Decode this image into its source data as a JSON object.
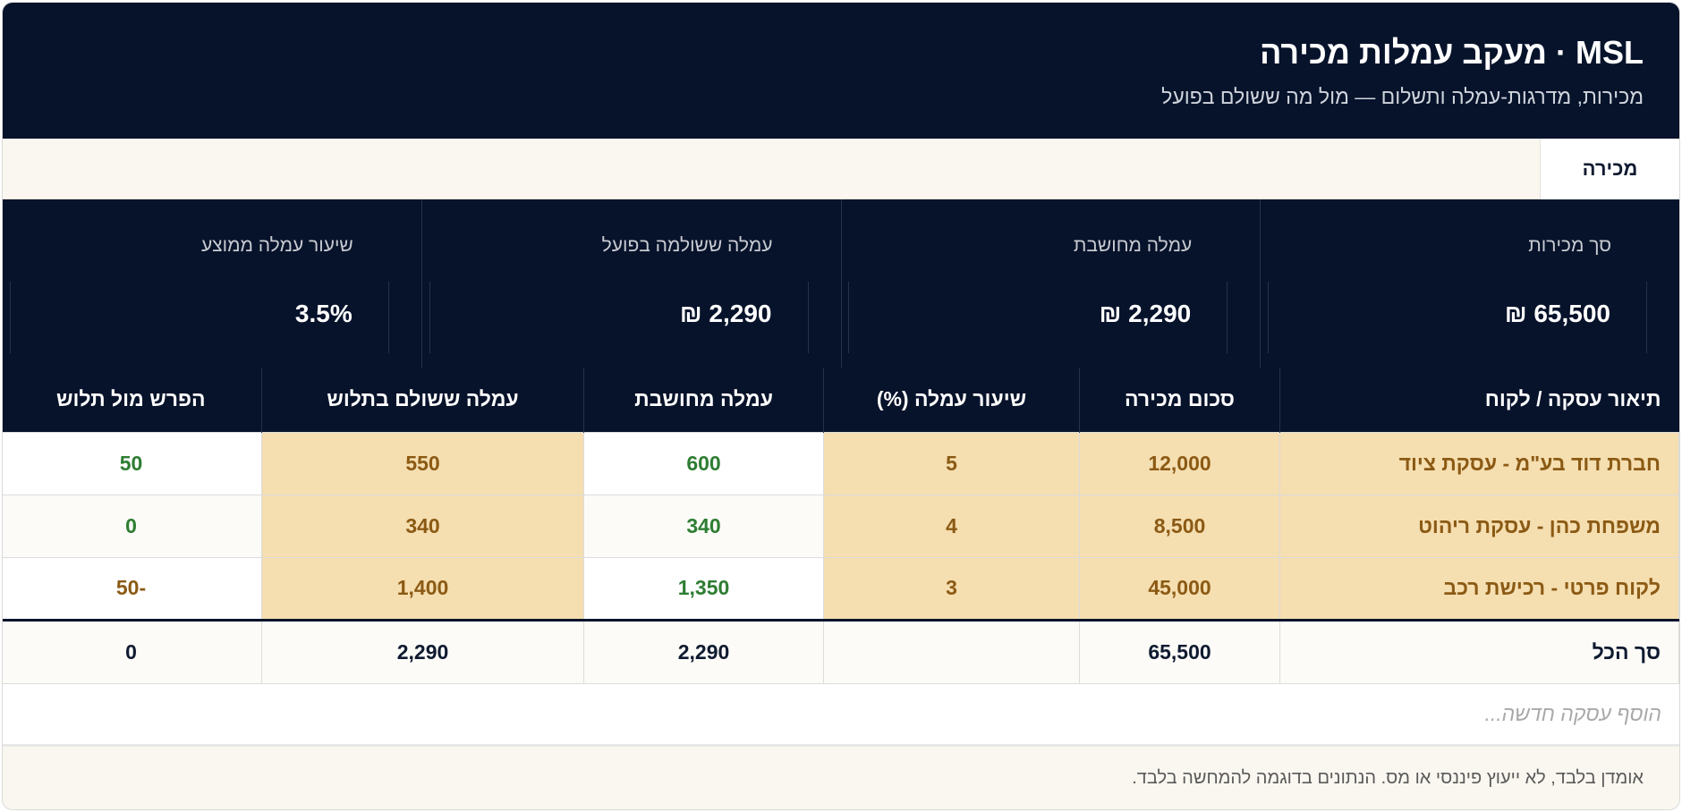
{
  "header": {
    "title": "MSL · מעקב עמלות מכירה",
    "subtitle": "מכירות, מדרגות-עמלה ותשלום — מול מה ששולם בפועל"
  },
  "tabs": [
    {
      "label": "מכירה",
      "active": true
    }
  ],
  "stats": [
    {
      "label": "סך מכירות",
      "value": "65,500 ₪"
    },
    {
      "label": "עמלה מחושבת",
      "value": "2,290 ₪"
    },
    {
      "label": "עמלה ששולמה בפועל",
      "value": "2,290 ₪"
    },
    {
      "label": "שיעור עמלה ממוצע",
      "value": "3.5%"
    }
  ],
  "table": {
    "columns": [
      "תיאור עסקה / לקוח",
      "סכום מכירה",
      "שיעור עמלה (%)",
      "עמלה מחושבת",
      "עמלה ששולם בתלוש",
      "הפרש מול תלוש"
    ],
    "rows": [
      {
        "desc": "חברת דוד בע\"מ - עסקת ציוד",
        "amount": "12,000",
        "rate": "5",
        "calc": "600",
        "paid": "550",
        "diff": "50",
        "diff_status": "positive"
      },
      {
        "desc": "משפחת כהן - עסקת ריהוט",
        "amount": "8,500",
        "rate": "4",
        "calc": "340",
        "paid": "340",
        "diff": "0",
        "diff_status": "positive"
      },
      {
        "desc": "לקוח פרטי - רכישת רכב",
        "amount": "45,000",
        "rate": "3",
        "calc": "1,350",
        "paid": "1,400",
        "diff": "-50",
        "diff_status": "negative"
      }
    ],
    "total": {
      "label": "סך הכל",
      "amount": "65,500",
      "rate": "",
      "calc": "2,290",
      "paid": "2,290",
      "diff": "0"
    },
    "add_placeholder": "הוסף עסקה חדשה..."
  },
  "footer": {
    "disclaimer": "אומדן בלבד, לא ייעוץ פיננסי או מס. הנתונים בדוגמה להמחשה בלבד."
  },
  "colors": {
    "navy": "#07132b",
    "amber": "#f5deb0",
    "brown": "#8b5a14",
    "green": "#2e7d32"
  }
}
